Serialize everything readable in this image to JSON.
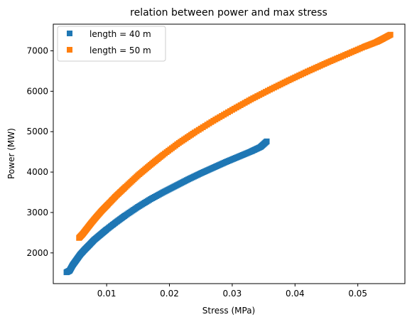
{
  "chart_data": {
    "type": "scatter",
    "title": "relation between power and max stress",
    "xlabel": "Stress (MPa)",
    "ylabel": "Power (MW)",
    "xlim": [
      0.0015,
      0.0575
    ],
    "ylim": [
      1240,
      7660
    ],
    "x_ticks": [
      0.01,
      0.02,
      0.03,
      0.04,
      0.05
    ],
    "y_ticks": [
      2000,
      3000,
      4000,
      5000,
      6000,
      7000
    ],
    "x_tick_labels": [
      "0.01",
      "0.02",
      "0.03",
      "0.04",
      "0.05"
    ],
    "y_tick_labels": [
      "2000",
      "3000",
      "4000",
      "5000",
      "6000",
      "7000"
    ],
    "grid": false,
    "legend_position": "top-left",
    "marker": "square",
    "series": [
      {
        "name": "length = 40 m",
        "color": "#1f77b4",
        "points": [
          [
            0.0036,
            1520
          ],
          [
            0.0041,
            1560
          ],
          [
            0.0046,
            1700
          ],
          [
            0.0052,
            1830
          ],
          [
            0.0058,
            1960
          ],
          [
            0.0065,
            2080
          ],
          [
            0.0072,
            2190
          ],
          [
            0.008,
            2320
          ],
          [
            0.009,
            2450
          ],
          [
            0.01,
            2580
          ],
          [
            0.0115,
            2760
          ],
          [
            0.013,
            2930
          ],
          [
            0.015,
            3140
          ],
          [
            0.017,
            3330
          ],
          [
            0.019,
            3500
          ],
          [
            0.021,
            3660
          ],
          [
            0.023,
            3820
          ],
          [
            0.025,
            3970
          ],
          [
            0.027,
            4110
          ],
          [
            0.029,
            4250
          ],
          [
            0.031,
            4380
          ],
          [
            0.033,
            4510
          ],
          [
            0.0345,
            4620
          ],
          [
            0.0355,
            4760
          ]
        ]
      },
      {
        "name": "length = 50 m",
        "color": "#ff7f0e",
        "points": [
          [
            0.0056,
            2370
          ],
          [
            0.0062,
            2470
          ],
          [
            0.0068,
            2590
          ],
          [
            0.0075,
            2730
          ],
          [
            0.0083,
            2880
          ],
          [
            0.0092,
            3040
          ],
          [
            0.0102,
            3200
          ],
          [
            0.0115,
            3410
          ],
          [
            0.013,
            3630
          ],
          [
            0.015,
            3920
          ],
          [
            0.017,
            4180
          ],
          [
            0.019,
            4430
          ],
          [
            0.0215,
            4720
          ],
          [
            0.024,
            4980
          ],
          [
            0.027,
            5270
          ],
          [
            0.03,
            5540
          ],
          [
            0.033,
            5800
          ],
          [
            0.036,
            6040
          ],
          [
            0.039,
            6270
          ],
          [
            0.042,
            6490
          ],
          [
            0.045,
            6700
          ],
          [
            0.048,
            6900
          ],
          [
            0.051,
            7100
          ],
          [
            0.053,
            7220
          ],
          [
            0.054,
            7300
          ],
          [
            0.0552,
            7400
          ]
        ]
      }
    ]
  }
}
